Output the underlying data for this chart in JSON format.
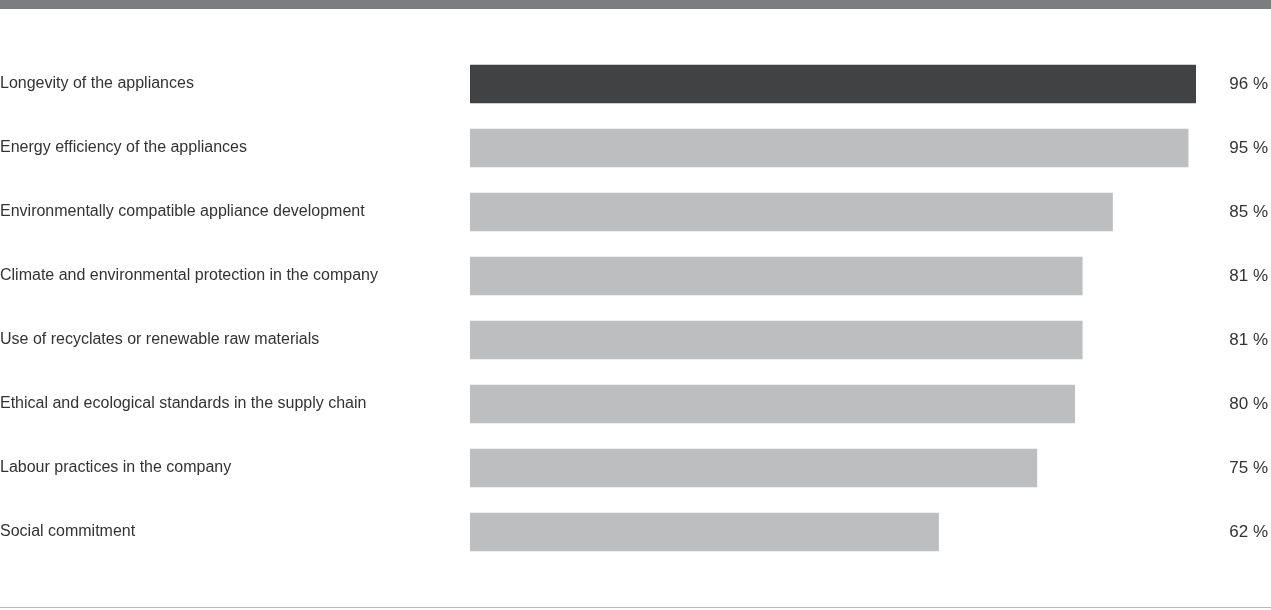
{
  "chart_data": {
    "type": "bar",
    "orientation": "horizontal",
    "categories": [
      "Longevity of the appliances",
      "Energy efficiency of the appliances",
      "Environmentally compatible appliance development",
      "Climate and environmental protection in the company",
      "Use of recyclates or renewable raw materials",
      "Ethical and ecological standards in the supply chain",
      "Labour practices in the company",
      "Social commitment"
    ],
    "values": [
      96,
      95,
      85,
      81,
      81,
      80,
      75,
      62
    ],
    "value_labels": [
      "96 %",
      "95 %",
      "85 %",
      "81 %",
      "81 %",
      "80 %",
      "75 %",
      "62 %"
    ],
    "colors": [
      "#404243",
      "#bcbec0",
      "#bcbec0",
      "#bcbec0",
      "#bcbec0",
      "#bcbec0",
      "#bcbec0",
      "#bcbec0"
    ],
    "tick_labels": false,
    "grid": false,
    "legend": false
  }
}
